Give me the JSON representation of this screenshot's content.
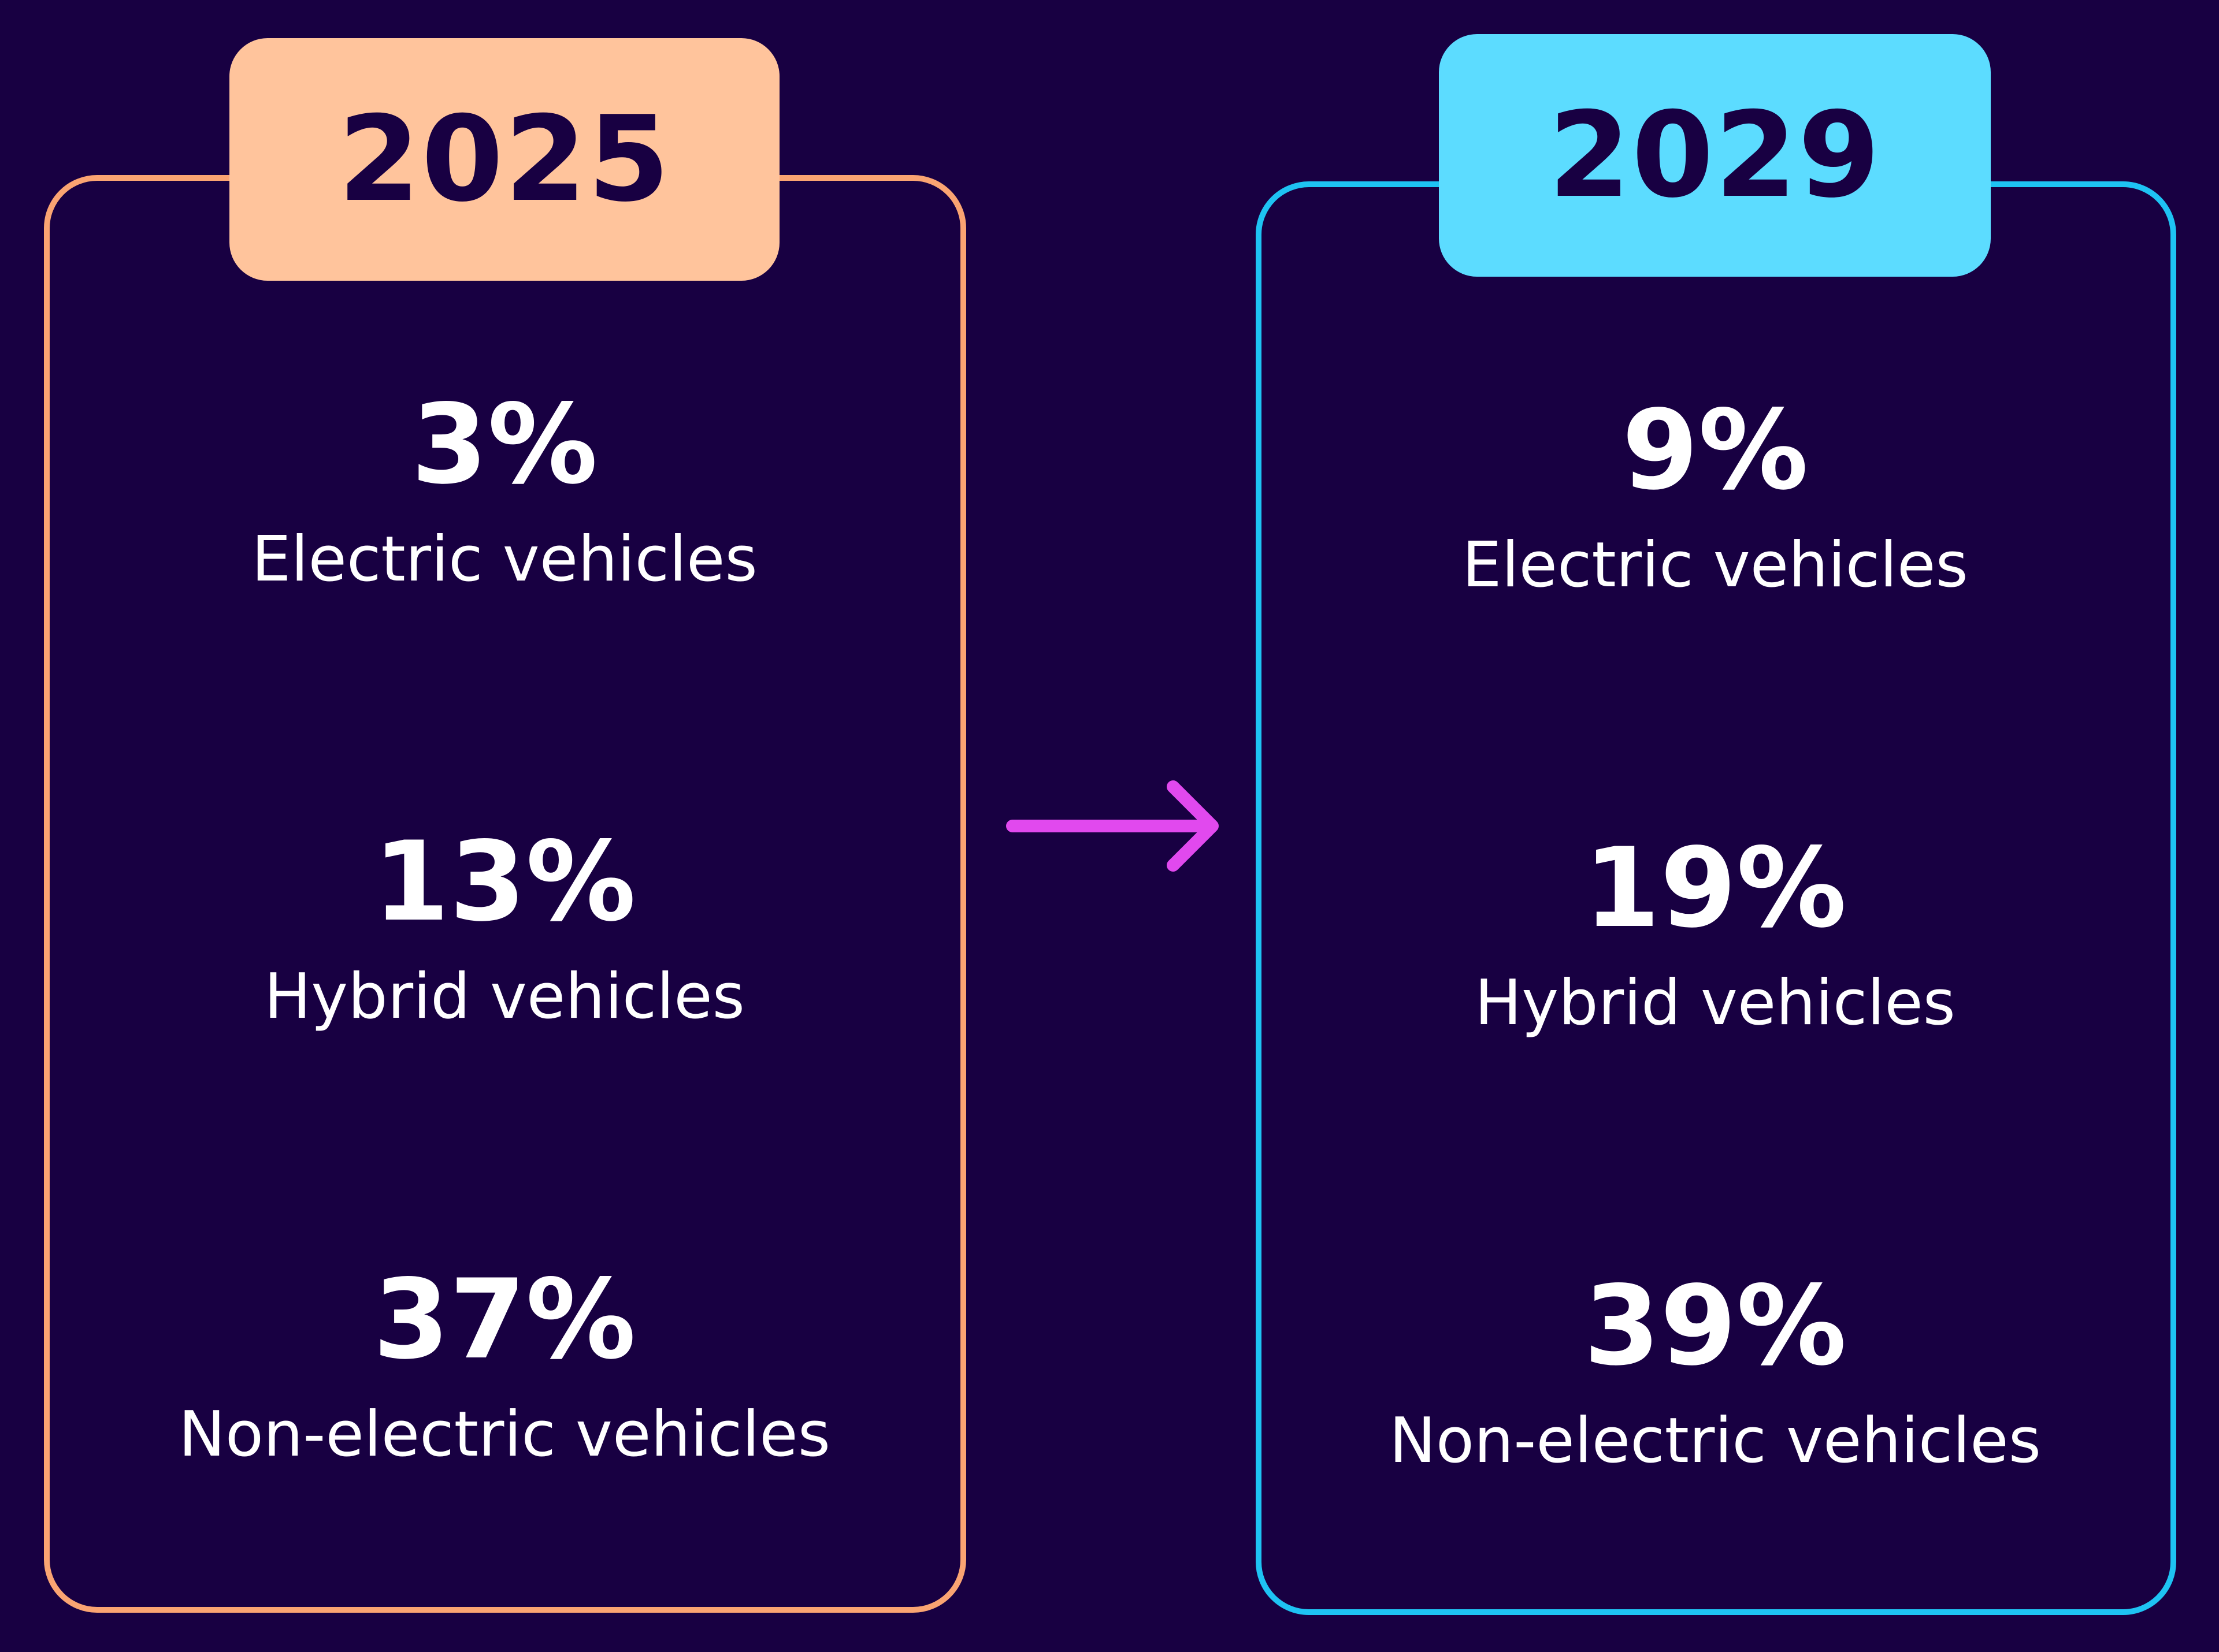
{
  "colors": {
    "background": "#180042",
    "year_2025": "#FFC49C",
    "year_2025_border": "#FAA472",
    "year_2029": "#5CDCFF",
    "year_2029_border": "#1EC3F3",
    "arrow": "#E149EE",
    "text": "#FFFFFF"
  },
  "arrow_icon": "arrow-right-icon",
  "panels": [
    {
      "year": "2025",
      "stats": [
        {
          "value": "3%",
          "label": "Electric vehicles"
        },
        {
          "value": "13%",
          "label": "Hybrid vehicles"
        },
        {
          "value": "37%",
          "label": "Non-electric vehicles"
        }
      ]
    },
    {
      "year": "2029",
      "stats": [
        {
          "value": "9%",
          "label": "Electric vehicles"
        },
        {
          "value": "19%",
          "label": "Hybrid vehicles"
        },
        {
          "value": "39%",
          "label": "Non-electric vehicles"
        }
      ]
    }
  ]
}
